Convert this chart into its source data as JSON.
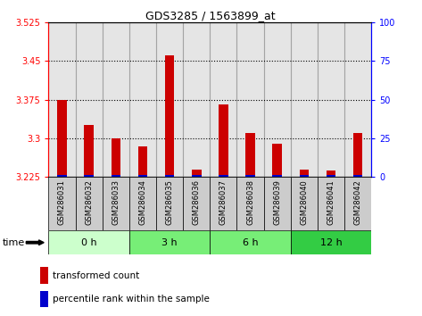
{
  "title": "GDS3285 / 1563899_at",
  "samples": [
    "GSM286031",
    "GSM286032",
    "GSM286033",
    "GSM286034",
    "GSM286035",
    "GSM286036",
    "GSM286037",
    "GSM286038",
    "GSM286039",
    "GSM286040",
    "GSM286041",
    "GSM286042"
  ],
  "red_values": [
    3.375,
    3.325,
    3.3,
    3.285,
    3.46,
    3.24,
    3.365,
    3.31,
    3.29,
    3.24,
    3.238,
    3.31
  ],
  "blue_values": [
    3.2285,
    3.2285,
    3.2285,
    3.2285,
    3.2285,
    3.2285,
    3.2285,
    3.2285,
    3.2285,
    3.2285,
    3.2285,
    3.2285
  ],
  "ymin": 3.225,
  "ymax": 3.525,
  "yticks_left": [
    3.225,
    3.3,
    3.375,
    3.45,
    3.525
  ],
  "yticks_right": [
    0,
    25,
    50,
    75,
    100
  ],
  "groups": [
    {
      "label": "0 h",
      "start": 0,
      "end": 3
    },
    {
      "label": "3 h",
      "start": 3,
      "end": 6
    },
    {
      "label": "6 h",
      "start": 6,
      "end": 9
    },
    {
      "label": "12 h",
      "start": 9,
      "end": 12
    }
  ],
  "group_colors": [
    "#ccffcc",
    "#77ee77",
    "#77ee77",
    "#33cc44"
  ],
  "bar_width": 0.35,
  "red_color": "#cc0000",
  "blue_color": "#0000cc",
  "bg_sample": "#cccccc",
  "time_label": "time",
  "legend_red": "transformed count",
  "legend_blue": "percentile rank within the sample"
}
